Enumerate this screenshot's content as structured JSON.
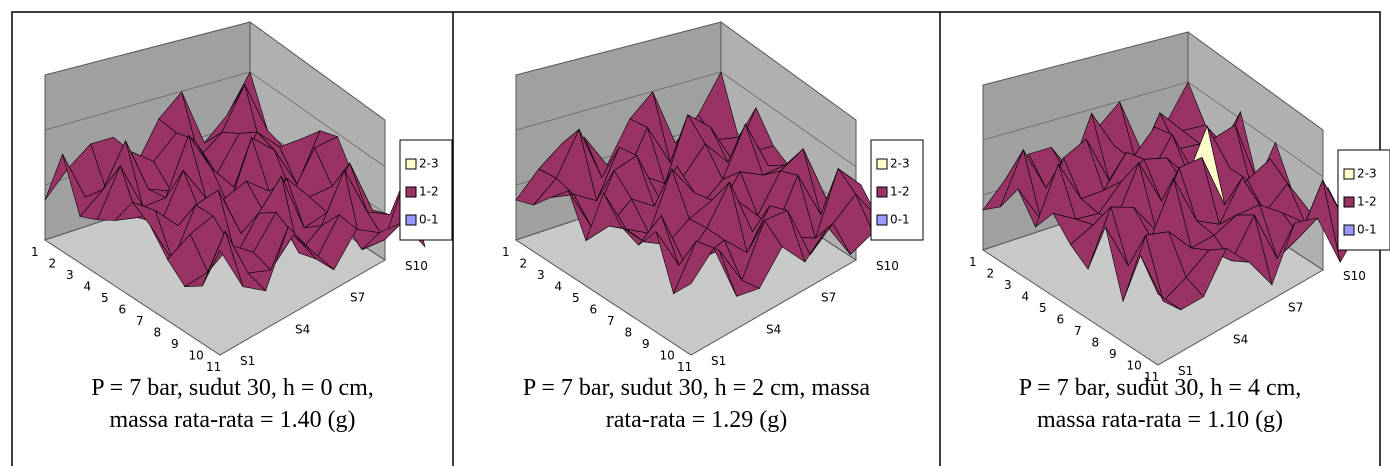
{
  "panels": [
    {
      "legend": [
        "2-3",
        "1-2",
        "0-1"
      ],
      "x_labels": [
        "1",
        "2",
        "3",
        "4",
        "5",
        "6",
        "7",
        "8",
        "9",
        "10",
        "11"
      ],
      "y_labels": [
        "S1",
        "S4",
        "S7",
        "S10"
      ],
      "caption": [
        "P = 7 bar, sudut 30, h = 0 cm,",
        "massa rata-rata = 1.40 (g)"
      ]
    },
    {
      "legend": [
        "2-3",
        "1-2",
        "0-1"
      ],
      "x_labels": [
        "1",
        "2",
        "3",
        "4",
        "5",
        "6",
        "7",
        "8",
        "9",
        "10",
        "11"
      ],
      "y_labels": [
        "S1",
        "S4",
        "S7",
        "S10"
      ],
      "caption": [
        "P = 7 bar, sudut 30, h = 2 cm, massa",
        "rata-rata = 1.29 (g)"
      ]
    },
    {
      "legend": [
        "2-3",
        "1-2",
        "0-1"
      ],
      "x_labels": [
        "1",
        "2",
        "3",
        "4",
        "5",
        "6",
        "7",
        "8",
        "9",
        "10",
        "11"
      ],
      "y_labels": [
        "S1",
        "S4",
        "S7",
        "S10"
      ],
      "caption": [
        "P = 7 bar, sudut 30, h = 4 cm,",
        "massa rata-rata = 1.10 (g)"
      ]
    }
  ]
}
